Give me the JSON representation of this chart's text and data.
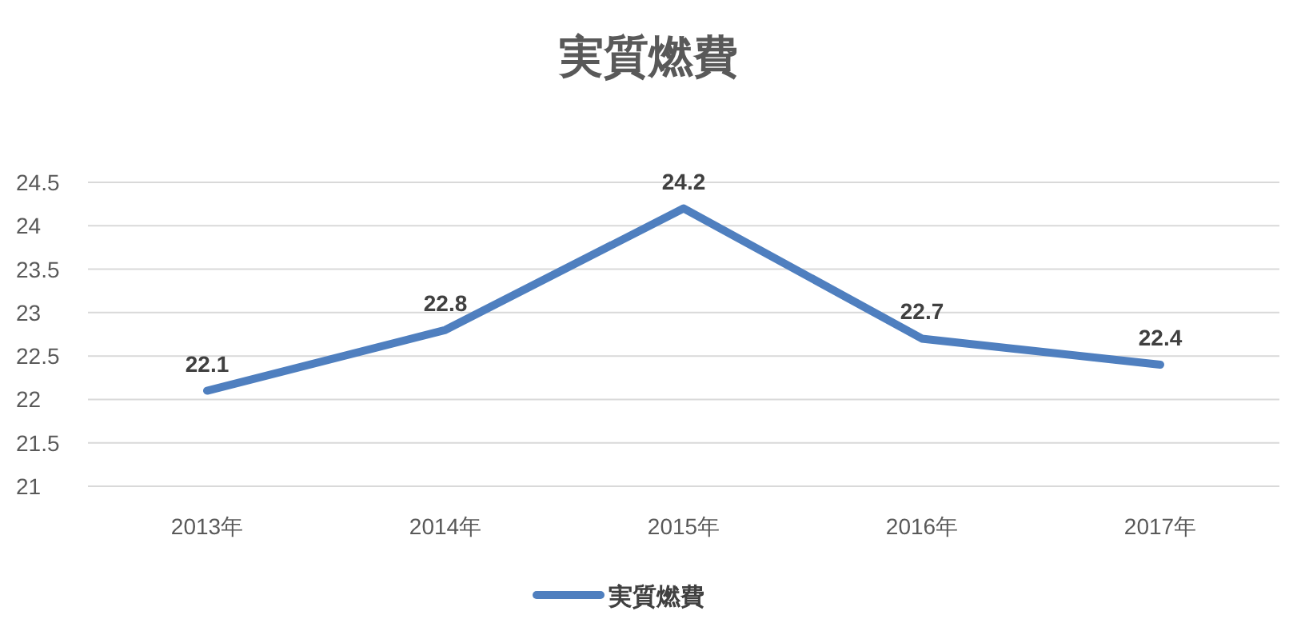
{
  "chart_data": {
    "type": "line",
    "title": "実質燃費",
    "categories": [
      "2013年",
      "2014年",
      "2015年",
      "2016年",
      "2017年"
    ],
    "series": [
      {
        "name": "実質燃費",
        "color": "#4f7fbf",
        "values": [
          22.1,
          22.8,
          24.2,
          22.7,
          22.4
        ]
      }
    ],
    "ylim": [
      21,
      24.5
    ],
    "yticks": [
      21,
      21.5,
      22,
      22.5,
      23,
      23.5,
      24,
      24.5
    ],
    "grid": "y",
    "legend": "bottom",
    "data_labels": true
  }
}
